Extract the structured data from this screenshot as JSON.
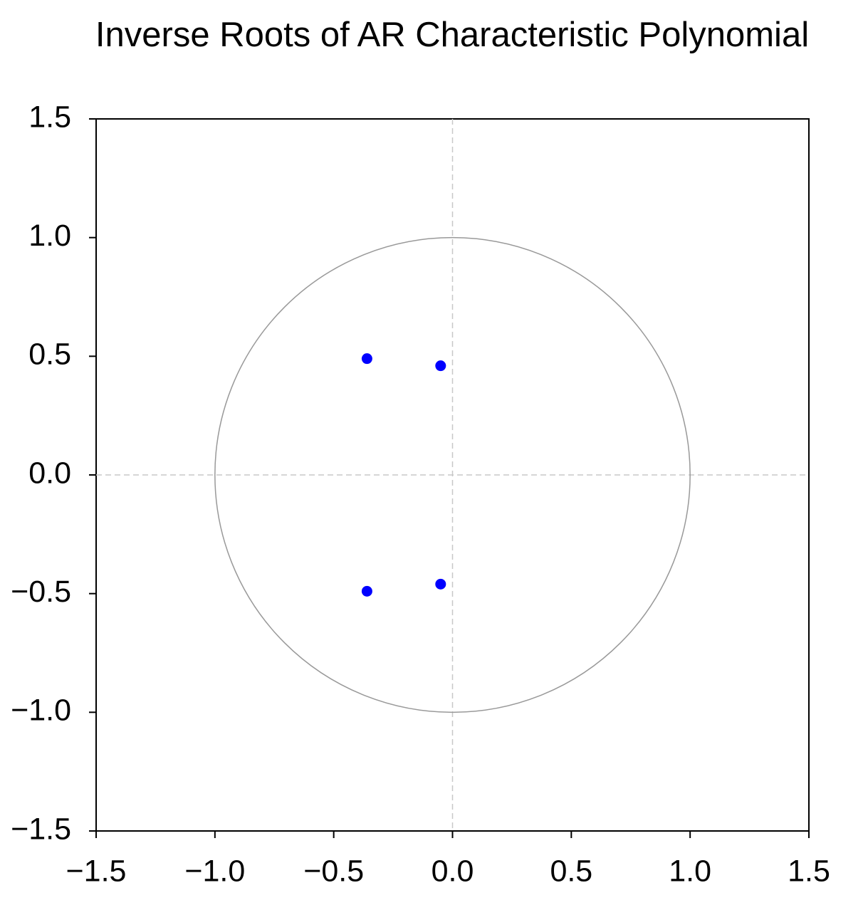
{
  "chart_data": {
    "type": "scatter",
    "title": "Inverse Roots of AR Characteristic Polynomial",
    "x": [
      -0.36,
      -0.05,
      -0.36,
      -0.05
    ],
    "values": [
      0.49,
      0.46,
      -0.49,
      -0.46
    ],
    "color": "#0000ff",
    "xlim": [
      -1.5,
      1.5
    ],
    "ylim": [
      -1.5,
      1.5
    ],
    "xticks": [
      {
        "value": -1.5,
        "label": "−1.5"
      },
      {
        "value": -1.0,
        "label": "−1.0"
      },
      {
        "value": -0.5,
        "label": "−0.5"
      },
      {
        "value": 0,
        "label": "0.0"
      },
      0.5,
      {
        "value": 1.0,
        "label": "1.0"
      },
      1.5
    ],
    "yticks": [
      {
        "value": -1.5,
        "label": "−1.5"
      },
      {
        "value": -1.0,
        "label": "−1.0"
      },
      {
        "value": -0.5,
        "label": "−0.5"
      },
      {
        "value": 0,
        "label": "0.0"
      },
      0.5,
      {
        "value": 1.0,
        "label": "1.0"
      },
      1.5
    ],
    "unit_circle": true,
    "zero_lines": true,
    "grid": false
  }
}
